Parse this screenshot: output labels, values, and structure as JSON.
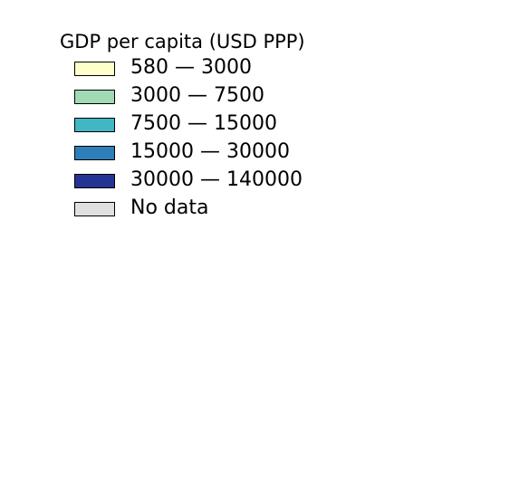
{
  "legend": {
    "title": "GDP per capita (USD PPP)",
    "items": [
      {
        "label": "580 — 3000",
        "color": "#ffffcc"
      },
      {
        "label": "3000 — 7500",
        "color": "#a1dab4"
      },
      {
        "label": "7500 — 15000",
        "color": "#41b6c4"
      },
      {
        "label": "15000 — 30000",
        "color": "#2c7fb8"
      },
      {
        "label": "30000 — 140000",
        "color": "#253494"
      },
      {
        "label": "No data",
        "color": "#e0e0e0"
      }
    ]
  }
}
